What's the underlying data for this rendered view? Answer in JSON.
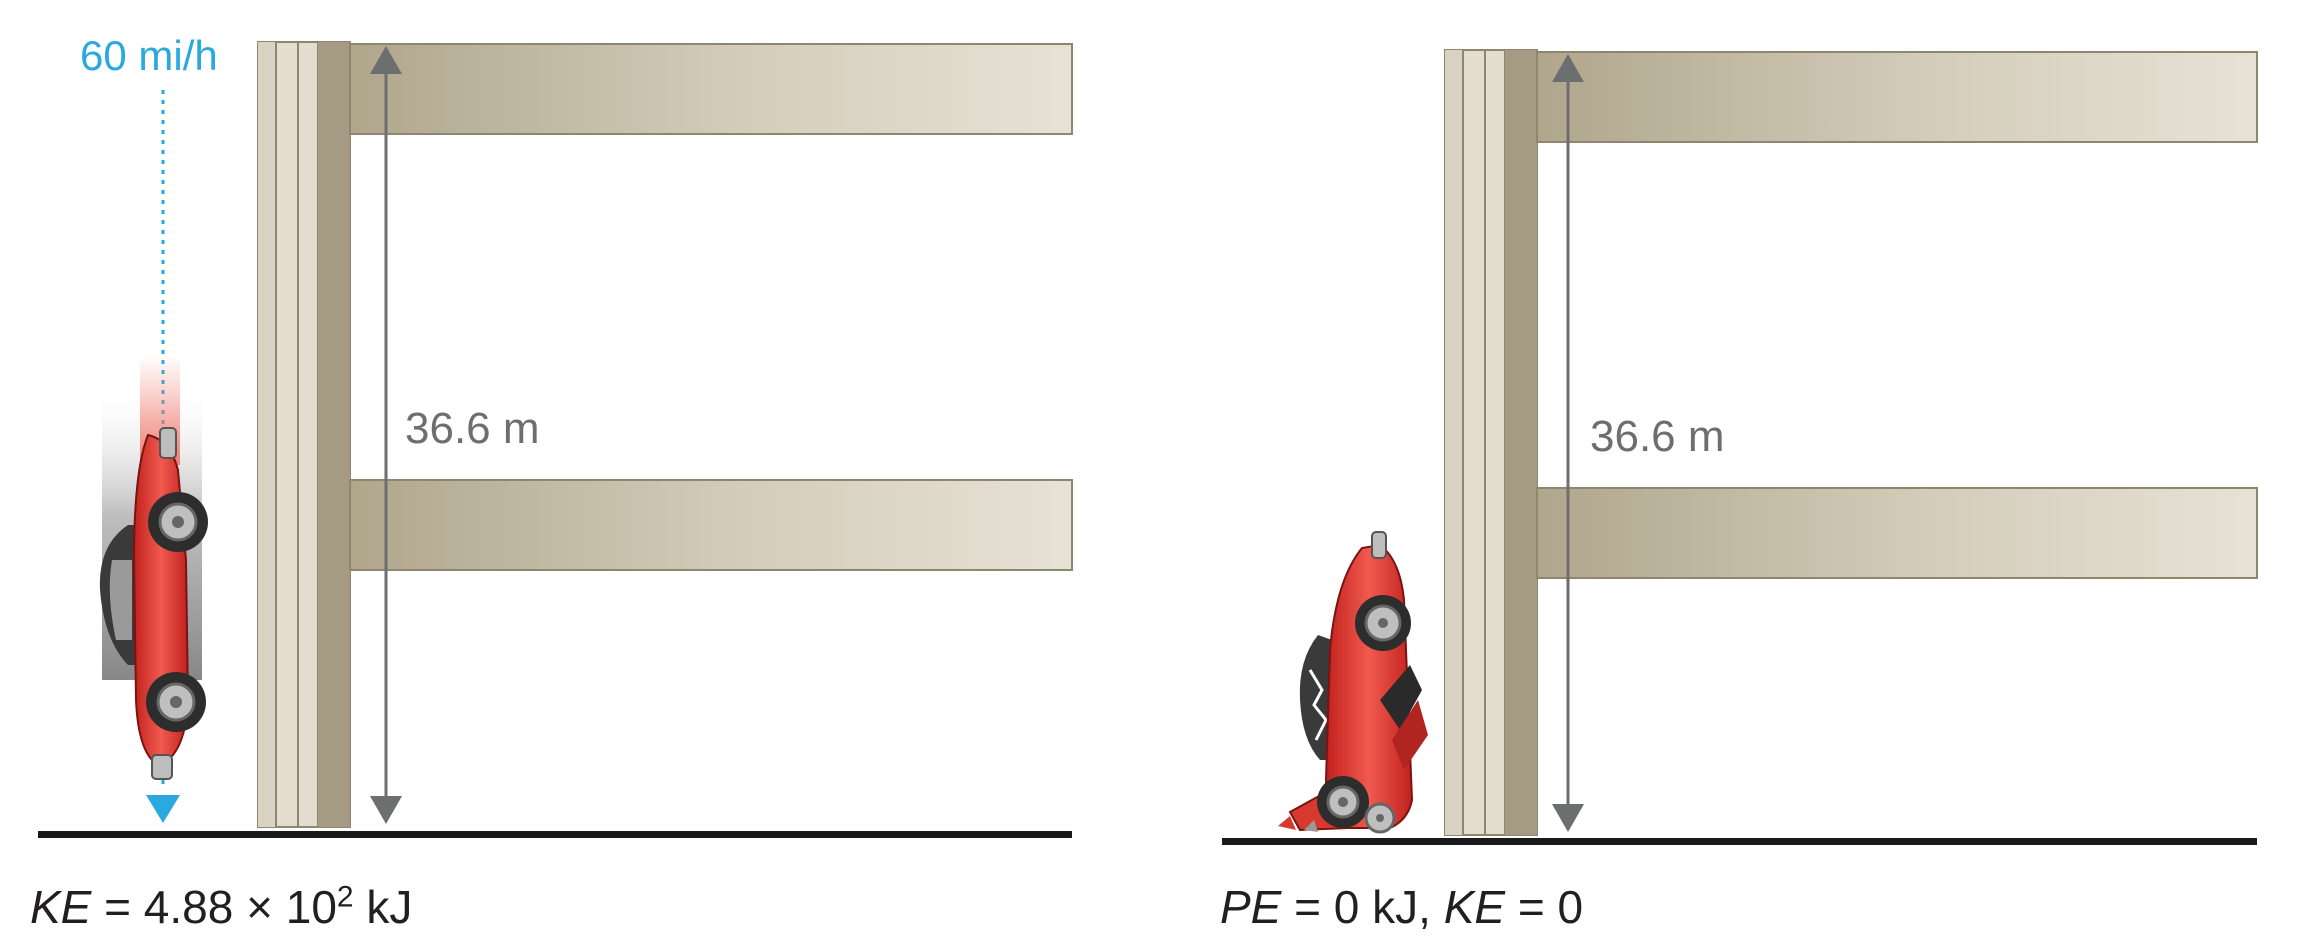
{
  "left_panel": {
    "speed_label": "60 mi/h",
    "height_label": "36.6 m",
    "caption": {
      "var": "KE",
      "eq": " = 4.88 × 10",
      "exp": "2",
      "unit": " kJ"
    }
  },
  "right_panel": {
    "height_label": "36.6 m",
    "caption": {
      "var1": "PE",
      "eq1": " = 0 kJ, ",
      "var2": "KE",
      "eq2": " = 0"
    }
  },
  "colors": {
    "speed_accent": "#29a9e0",
    "concrete_dark": "#a99f87",
    "concrete_light": "#e4e0d4",
    "arrow_gray": "#6d6e70",
    "car_red": "#e8322e",
    "ground": "#1a1a1a"
  },
  "icons": [
    "car-icon",
    "crashed-car-icon",
    "down-arrow-icon",
    "double-arrow-icon"
  ]
}
